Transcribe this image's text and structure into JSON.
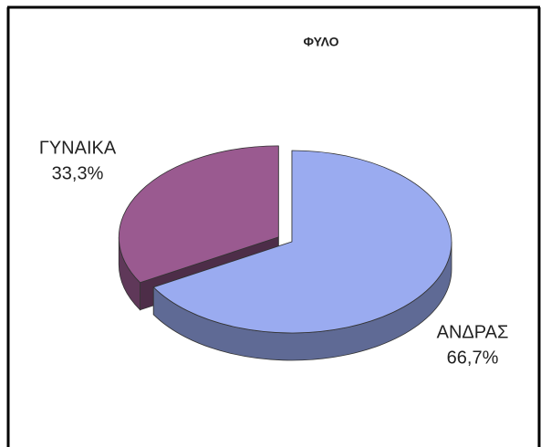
{
  "chart_data": {
    "type": "pie",
    "title": "ΦΥΛΟ",
    "categories": [
      "ΑΝΔΡΑΣ",
      "ΓΥΝΑΙΚΑ"
    ],
    "values": [
      66.7,
      33.3
    ],
    "value_labels": [
      "66,7%",
      "33,3%"
    ],
    "colors": [
      "#9aabf0",
      "#9a5a90"
    ]
  }
}
